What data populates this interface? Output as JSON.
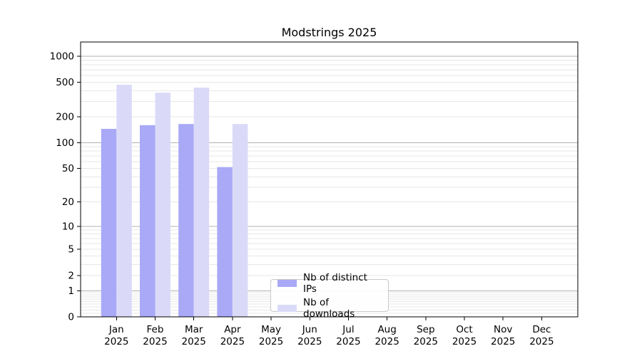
{
  "chart_data": {
    "type": "bar",
    "title": "Modstrings 2025",
    "categories": [
      "Jan",
      "Feb",
      "Mar",
      "Apr",
      "May",
      "Jun",
      "Jul",
      "Aug",
      "Sep",
      "Oct",
      "Nov",
      "Dec"
    ],
    "category_year": "2025",
    "series": [
      {
        "name": "Nb of distinct IPs",
        "color": "#a9a9f7",
        "values": [
          145,
          160,
          165,
          52,
          null,
          null,
          null,
          null,
          null,
          null,
          null,
          null
        ]
      },
      {
        "name": "Nb of downloads",
        "color": "#dadaf8",
        "values": [
          470,
          380,
          435,
          165,
          null,
          null,
          null,
          null,
          null,
          null,
          null,
          null
        ]
      }
    ],
    "y_ticks": [
      0,
      1,
      2,
      5,
      10,
      20,
      50,
      100,
      200,
      500,
      1000
    ],
    "y_scale": "log10(1+v)",
    "ylim": [
      0,
      1460
    ],
    "grid": {
      "major_values": [
        1,
        10,
        100,
        1000
      ],
      "major_color": "#b2b2b2",
      "minor_color": "#e7e7e7"
    },
    "legend_position": "lower center-left",
    "axis_color": "#000000",
    "background_color": "#ffffff"
  }
}
